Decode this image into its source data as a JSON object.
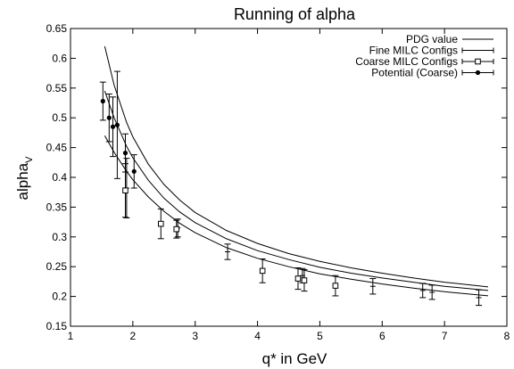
{
  "chart_data": {
    "type": "scatter",
    "title": "Running of alpha",
    "xlabel": "q* in GeV",
    "ylabel": "alpha",
    "ylabel_sub": "V",
    "xlim": [
      1,
      8
    ],
    "ylim": [
      0.15,
      0.65
    ],
    "xticks": [
      "1",
      "2",
      "3",
      "4",
      "5",
      "6",
      "7",
      "8"
    ],
    "yticks": [
      "0.15",
      "0.2",
      "0.25",
      "0.3",
      "0.35",
      "0.4",
      "0.45",
      "0.5",
      "0.55",
      "0.6",
      "0.65"
    ],
    "grid": false,
    "legend_position": "top-right",
    "series": [
      {
        "name": "PDG value",
        "kind": "curve-band",
        "x_range": [
          1.55,
          7.7
        ],
        "curves": [
          [
            [
              1.55,
              0.62
            ],
            [
              1.7,
              0.555
            ],
            [
              1.9,
              0.492
            ],
            [
              2.0,
              0.468
            ],
            [
              2.25,
              0.422
            ],
            [
              2.5,
              0.388
            ],
            [
              2.75,
              0.362
            ],
            [
              3.0,
              0.341
            ],
            [
              3.5,
              0.311
            ],
            [
              4.0,
              0.289
            ],
            [
              4.5,
              0.272
            ],
            [
              5.0,
              0.259
            ],
            [
              5.5,
              0.248
            ],
            [
              6.0,
              0.239
            ],
            [
              6.5,
              0.231
            ],
            [
              7.0,
              0.224
            ],
            [
              7.7,
              0.216
            ]
          ],
          [
            [
              1.55,
              0.545
            ],
            [
              1.7,
              0.5
            ],
            [
              1.9,
              0.452
            ],
            [
              2.0,
              0.433
            ],
            [
              2.25,
              0.395
            ],
            [
              2.5,
              0.365
            ],
            [
              2.75,
              0.342
            ],
            [
              3.0,
              0.324
            ],
            [
              3.5,
              0.297
            ],
            [
              4.0,
              0.277
            ],
            [
              4.5,
              0.262
            ],
            [
              5.0,
              0.249
            ],
            [
              5.5,
              0.239
            ],
            [
              6.0,
              0.231
            ],
            [
              6.5,
              0.224
            ],
            [
              7.0,
              0.217
            ],
            [
              7.7,
              0.21
            ]
          ],
          [
            [
              1.55,
              0.47
            ],
            [
              1.7,
              0.442
            ],
            [
              1.9,
              0.41
            ],
            [
              2.0,
              0.396
            ],
            [
              2.25,
              0.367
            ],
            [
              2.5,
              0.343
            ],
            [
              2.75,
              0.323
            ],
            [
              3.0,
              0.307
            ],
            [
              3.5,
              0.282
            ],
            [
              4.0,
              0.264
            ],
            [
              4.5,
              0.25
            ],
            [
              5.0,
              0.238
            ],
            [
              5.5,
              0.229
            ],
            [
              6.0,
              0.221
            ],
            [
              6.5,
              0.214
            ],
            [
              7.0,
              0.208
            ],
            [
              7.7,
              0.201
            ]
          ]
        ]
      },
      {
        "name": "Fine MILC Configs",
        "marker": "plus",
        "points": [
          {
            "x": 1.9,
            "y": 0.382,
            "err": 0.05
          },
          {
            "x": 2.72,
            "y": 0.315,
            "err": 0.015
          },
          {
            "x": 3.52,
            "y": 0.275,
            "err": 0.013
          },
          {
            "x": 4.72,
            "y": 0.235,
            "err": 0.012
          },
          {
            "x": 5.85,
            "y": 0.217,
            "err": 0.013
          },
          {
            "x": 6.65,
            "y": 0.21,
            "err": 0.012
          },
          {
            "x": 6.8,
            "y": 0.207,
            "err": 0.012
          },
          {
            "x": 7.55,
            "y": 0.198,
            "err": 0.013
          }
        ]
      },
      {
        "name": "Coarse MILC Configs",
        "marker": "square",
        "points": [
          {
            "x": 1.88,
            "y": 0.378,
            "err": 0.045
          },
          {
            "x": 2.45,
            "y": 0.322,
            "err": 0.025
          },
          {
            "x": 2.7,
            "y": 0.313,
            "err": 0.015
          },
          {
            "x": 4.08,
            "y": 0.243,
            "err": 0.02
          },
          {
            "x": 4.65,
            "y": 0.23,
            "err": 0.018
          },
          {
            "x": 4.75,
            "y": 0.227,
            "err": 0.018
          },
          {
            "x": 5.25,
            "y": 0.218,
            "err": 0.017
          }
        ]
      },
      {
        "name": "Potential (Coarse)",
        "marker": "circle",
        "points": [
          {
            "x": 1.52,
            "y": 0.528,
            "err": 0.032
          },
          {
            "x": 1.62,
            "y": 0.5,
            "err": 0.04
          },
          {
            "x": 1.68,
            "y": 0.485,
            "err": 0.05
          },
          {
            "x": 1.75,
            "y": 0.488,
            "err": 0.09
          },
          {
            "x": 1.88,
            "y": 0.441,
            "err": 0.032
          },
          {
            "x": 2.02,
            "y": 0.41,
            "err": 0.028
          }
        ]
      }
    ]
  }
}
